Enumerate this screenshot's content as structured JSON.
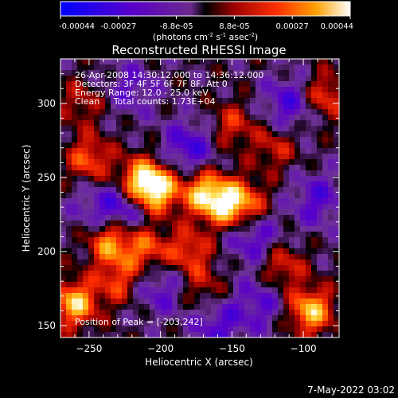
{
  "chart_data": {
    "type": "heatmap",
    "title": "Reconstructed RHESSI Image",
    "xlabel": "Heliocentric X (arcsec)",
    "ylabel": "Heliocentric Y (arcsec)",
    "xlim": [
      -270,
      -75
    ],
    "ylim": [
      142,
      330
    ],
    "x_ticks": [
      -250,
      -200,
      -150,
      -100
    ],
    "y_ticks": [
      150,
      200,
      250,
      300
    ],
    "colorbar": {
      "range": [
        -0.00044,
        0.00044
      ],
      "tick_labels": [
        "-0.00044",
        "-0.00027",
        "-8.8e-05",
        "8.8e-05",
        "0.00027",
        "0.00044"
      ],
      "label_main": "(photons cm",
      "label_sup1": "-2",
      "label_mid1": " s",
      "label_sup2": "-1",
      "label_mid2": " asec",
      "label_sup3": "-2",
      "label_end": ")"
    },
    "annotations": [
      "26-Apr-2008 14:30:12.000 to 14:36:12.000",
      "Detectors: 3F 4F 5F 6F 7F 8F, Att 0",
      "Energy Range: 12.0 - 25.0 keV",
      "Clean     Total counts: 1.73E+04"
    ],
    "peak_label": "Position of Peak = [-203,242]",
    "peak_position": [
      -203,
      242
    ],
    "footer": "7-May-2022 03:02",
    "hotspots": [
      {
        "x": -203,
        "y": 242,
        "v": 1.0
      },
      {
        "x": -215,
        "y": 248,
        "v": 0.75
      },
      {
        "x": -170,
        "y": 240,
        "v": 0.8
      },
      {
        "x": -155,
        "y": 232,
        "v": 0.75
      },
      {
        "x": -140,
        "y": 232,
        "v": 0.6
      },
      {
        "x": -235,
        "y": 207,
        "v": 0.8
      },
      {
        "x": -210,
        "y": 202,
        "v": 0.6
      },
      {
        "x": -180,
        "y": 200,
        "v": 0.55
      },
      {
        "x": -260,
        "y": 165,
        "v": 0.9
      },
      {
        "x": -230,
        "y": 180,
        "v": 0.5
      },
      {
        "x": -95,
        "y": 160,
        "v": 0.9
      },
      {
        "x": -115,
        "y": 190,
        "v": 0.5
      },
      {
        "x": -85,
        "y": 305,
        "v": 0.55
      },
      {
        "x": -250,
        "y": 262,
        "v": 0.6
      },
      {
        "x": -255,
        "y": 300,
        "v": 0.35
      },
      {
        "x": -150,
        "y": 285,
        "v": 0.45
      },
      {
        "x": -120,
        "y": 270,
        "v": 0.4
      },
      {
        "x": -170,
        "y": 175,
        "v": 0.35
      }
    ],
    "coldspots": [
      {
        "x": -180,
        "y": 270,
        "v": -0.55
      },
      {
        "x": -225,
        "y": 228,
        "v": -0.5
      },
      {
        "x": -135,
        "y": 210,
        "v": -0.5
      },
      {
        "x": -110,
        "y": 300,
        "v": -0.5
      },
      {
        "x": -160,
        "y": 150,
        "v": -0.45
      },
      {
        "x": -90,
        "y": 235,
        "v": -0.45
      },
      {
        "x": -200,
        "y": 175,
        "v": -0.4
      },
      {
        "x": -130,
        "y": 165,
        "v": -0.4
      },
      {
        "x": -220,
        "y": 310,
        "v": -0.35
      },
      {
        "x": -245,
        "y": 230,
        "v": -0.3
      }
    ]
  }
}
